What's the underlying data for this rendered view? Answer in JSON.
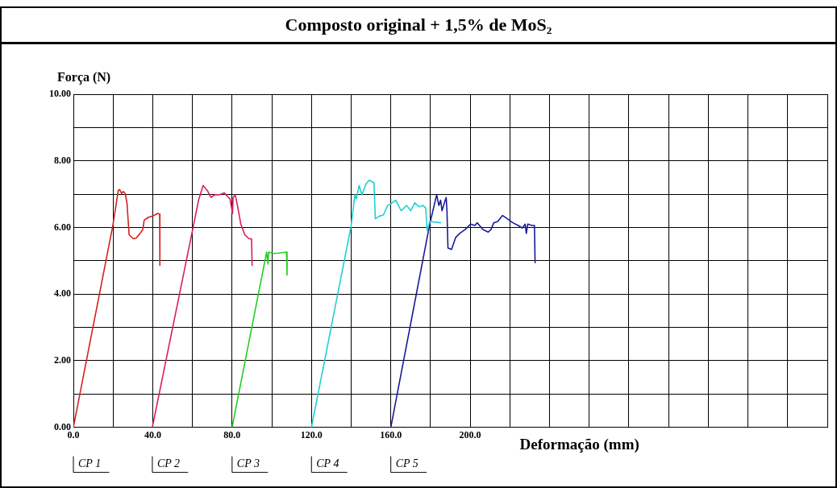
{
  "chart_data": {
    "type": "line",
    "title": "Composto original + 1,5% de MoS₂",
    "xlabel": "Deformação (mm)",
    "ylabel": "Força (N)",
    "xlim": [
      0,
      380
    ],
    "xticks": [
      {
        "value": 0,
        "label": "0.0"
      },
      {
        "value": 20,
        "label": null
      },
      {
        "value": 40,
        "label": "40.0"
      },
      {
        "value": 60,
        "label": null
      },
      {
        "value": 80,
        "label": "80.0"
      },
      {
        "value": 100,
        "label": null
      },
      {
        "value": 120,
        "label": "120.0"
      },
      {
        "value": 140,
        "label": null
      },
      {
        "value": 160,
        "label": "160.0"
      },
      {
        "value": 180,
        "label": null
      },
      {
        "value": 200,
        "label": "200.0"
      },
      {
        "value": 220,
        "label": null
      },
      {
        "value": 240,
        "label": null
      },
      {
        "value": 260,
        "label": null
      },
      {
        "value": 280,
        "label": null
      },
      {
        "value": 300,
        "label": null
      },
      {
        "value": 320,
        "label": null
      },
      {
        "value": 340,
        "label": null
      },
      {
        "value": 360,
        "label": null
      },
      {
        "value": 380,
        "label": null
      }
    ],
    "ylim": [
      0,
      10
    ],
    "yticks": [
      {
        "value": 0,
        "label": "0.00"
      },
      {
        "value": 1,
        "label": null
      },
      {
        "value": 2,
        "label": "2.00"
      },
      {
        "value": 3,
        "label": null
      },
      {
        "value": 4,
        "label": "4.00"
      },
      {
        "value": 5,
        "label": null
      },
      {
        "value": 6,
        "label": "6.00"
      },
      {
        "value": 7,
        "label": null
      },
      {
        "value": 8,
        "label": "8.00"
      },
      {
        "value": 9,
        "label": null
      },
      {
        "value": 10,
        "label": "10.00"
      }
    ],
    "grid": true,
    "legend": false,
    "marker": "none",
    "line_style": "solid",
    "series": [
      {
        "name": "CP 1",
        "color": "#d42020",
        "x": [
          0,
          19.9,
          22.6,
          23.3,
          24.3,
          25.1,
          26.1,
          27.0,
          28.1,
          30.2,
          31.6,
          33.6,
          35.0,
          35.7,
          37.7,
          39.8,
          41.2,
          42.5,
          43.5,
          43.6
        ],
        "values": [
          0,
          6.06,
          7.1,
          7.14,
          7.02,
          7.08,
          7.02,
          6.74,
          5.78,
          5.66,
          5.68,
          5.82,
          5.94,
          6.22,
          6.3,
          6.34,
          6.38,
          6.42,
          6.4,
          4.86
        ]
      },
      {
        "name": "CP 2",
        "color": "#d8205a",
        "x": [
          39.8,
          60.4,
          63.1,
          65.4,
          66.5,
          67.6,
          69.3,
          71.3,
          73.4,
          76.1,
          77.5,
          78.9,
          80.2,
          80.5,
          81.6,
          82.7,
          84.4,
          86.4,
          88.5,
          89.8,
          90.1
        ],
        "values": [
          0,
          6.02,
          6.82,
          7.26,
          7.18,
          7.1,
          6.9,
          6.98,
          6.98,
          7.04,
          6.94,
          6.86,
          6.42,
          6.9,
          6.98,
          6.66,
          6.1,
          5.78,
          5.66,
          5.66,
          4.86
        ]
      },
      {
        "name": "CP 3",
        "color": "#20d020",
        "x": [
          80.0,
          97.4,
          98.1,
          98.4,
          100.8,
          103.6,
          107.4,
          107.7
        ],
        "values": [
          0,
          5.26,
          4.9,
          5.26,
          5.22,
          5.23,
          5.26,
          4.57
        ]
      },
      {
        "name": "CP 4",
        "color": "#20d0d0",
        "x": [
          120,
          139.9,
          141.9,
          142.6,
          144.0,
          145.4,
          147.4,
          149.1,
          151.5,
          152.2,
          154.3,
          156.3,
          158.4,
          159.8,
          162.5,
          165.2,
          168.0,
          170.0,
          172.1,
          174.2,
          176.2,
          177.6,
          178.3,
          179.6,
          185.1
        ],
        "values": [
          0,
          6.02,
          6.98,
          6.86,
          7.26,
          6.98,
          7.3,
          7.42,
          7.34,
          6.26,
          6.34,
          6.38,
          6.66,
          6.7,
          6.82,
          6.5,
          6.66,
          6.5,
          6.74,
          6.62,
          6.66,
          6.58,
          5.9,
          6.18,
          6.14
        ]
      },
      {
        "name": "CP 5",
        "color": "#1a1a9a",
        "x": [
          160,
          179.6,
          183.1,
          184.2,
          185.1,
          185.8,
          187.2,
          187.9,
          188.3,
          188.8,
          190.6,
          192.7,
          194.7,
          197.5,
          200.2,
          202.3,
          203.6,
          206.4,
          209.1,
          210.5,
          211.9,
          213.9,
          216.3,
          218.7,
          221.5,
          224.2,
          226.3,
          227.7,
          228.3,
          229.0,
          231.1,
          232.4,
          232.7
        ],
        "values": [
          0,
          6.1,
          6.98,
          6.66,
          6.82,
          6.5,
          6.78,
          6.9,
          6.5,
          5.38,
          5.34,
          5.7,
          5.82,
          5.94,
          6.1,
          6.06,
          6.14,
          5.94,
          5.86,
          5.94,
          6.14,
          6.18,
          6.36,
          6.26,
          6.14,
          6.06,
          5.98,
          6.1,
          5.82,
          6.1,
          6.06,
          6.06,
          4.94
        ]
      }
    ]
  }
}
